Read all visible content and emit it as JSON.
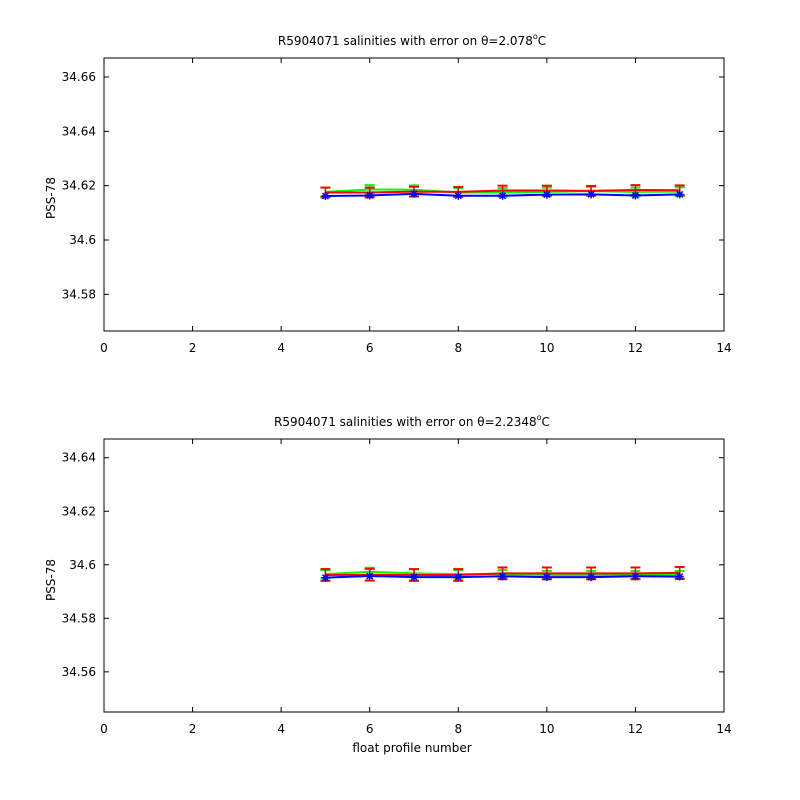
{
  "figure": {
    "background": "#ffffff",
    "xlabel": "float profile number"
  },
  "chart_data": [
    {
      "type": "line",
      "title": "R5904071 salinities with error on θ=2.078°C",
      "title_main": "R5904071 salinities with error on θ=2.078",
      "title_sup": "o",
      "title_end": "C",
      "xlabel": "",
      "ylabel": "PSS-78",
      "xlim": [
        0,
        14
      ],
      "ylim": [
        34.5665,
        34.667
      ],
      "xticks": [
        "0",
        "2",
        "4",
        "6",
        "8",
        "10",
        "12",
        "14"
      ],
      "yticks": [
        "34.58",
        "34.6",
        "34.62",
        "34.64",
        "34.66"
      ],
      "grid": false,
      "x": [
        5,
        6,
        7,
        8,
        9,
        10,
        11,
        12,
        13
      ],
      "series": [
        {
          "color": "#00ff00",
          "style": "line-with-errorbars",
          "values": [
            34.6177,
            34.6186,
            34.6185,
            34.6175,
            34.6175,
            34.6177,
            34.618,
            34.6177,
            34.6178
          ],
          "err": 0.0016
        },
        {
          "color": "#ff0000",
          "style": "line-with-errorbars",
          "values": [
            34.6175,
            34.6175,
            34.6178,
            34.6177,
            34.6182,
            34.6182,
            34.6181,
            34.6184,
            34.6183
          ],
          "err": 0.0018
        },
        {
          "color": "#0000ff",
          "style": "line-with-markers",
          "marker": "*",
          "values": [
            34.6162,
            34.6164,
            34.617,
            34.6163,
            34.6163,
            34.6167,
            34.6168,
            34.6164,
            34.6168
          ]
        }
      ]
    },
    {
      "type": "line",
      "title": "R5904071 salinities with error on θ=2.2348°C",
      "title_main": "R5904071 salinities with error on θ=2.2348",
      "title_sup": "o",
      "title_end": "C",
      "xlabel": "float profile number",
      "ylabel": "PSS-78",
      "xlim": [
        0,
        14
      ],
      "ylim": [
        34.545,
        34.647
      ],
      "xticks": [
        "0",
        "2",
        "4",
        "6",
        "8",
        "10",
        "12",
        "14"
      ],
      "yticks": [
        "34.56",
        "34.58",
        "34.6",
        "34.62",
        "34.64"
      ],
      "grid": false,
      "x": [
        5,
        6,
        7,
        8,
        9,
        10,
        11,
        12,
        13
      ],
      "series": [
        {
          "color": "#00ff00",
          "style": "line-with-errorbars",
          "values": [
            34.5965,
            34.5974,
            34.5968,
            34.5965,
            34.5965,
            34.5962,
            34.5962,
            34.5962,
            34.5962
          ],
          "err": 0.0015
        },
        {
          "color": "#ff0000",
          "style": "line-with-errorbars",
          "values": [
            34.5962,
            34.5963,
            34.5962,
            34.5962,
            34.5968,
            34.5968,
            34.5968,
            34.5968,
            34.597
          ],
          "err": 0.0022
        },
        {
          "color": "#0000ff",
          "style": "line-with-markers",
          "marker": "*",
          "values": [
            34.5952,
            34.5958,
            34.5954,
            34.5954,
            34.5957,
            34.5954,
            34.5954,
            34.5957,
            34.5956
          ]
        }
      ]
    }
  ]
}
